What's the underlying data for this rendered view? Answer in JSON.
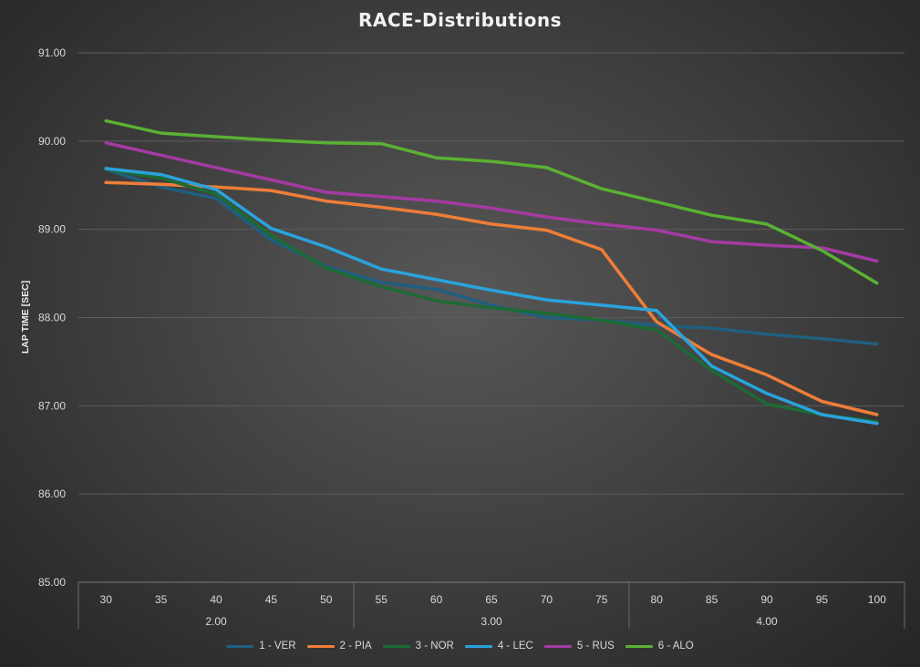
{
  "chart_data": {
    "type": "line",
    "title": "RACE-Distributions",
    "ylabel": "LAP TIME [SEC]",
    "xlabel": "",
    "ylim": [
      85,
      91
    ],
    "y_ticks": [
      "85.00",
      "86.00",
      "87.00",
      "88.00",
      "89.00",
      "90.00",
      "91.00"
    ],
    "categories": [
      "30",
      "35",
      "40",
      "45",
      "50",
      "55",
      "60",
      "65",
      "70",
      "75",
      "80",
      "85",
      "90",
      "95",
      "100"
    ],
    "groups": [
      {
        "label": "2.00",
        "span": 5
      },
      {
        "label": "3.00",
        "span": 5
      },
      {
        "label": "4.00",
        "span": 5
      }
    ],
    "grid": true,
    "legend_position": "bottom",
    "series": [
      {
        "name": "1 - VER",
        "color": "#1f5f7f",
        "values": [
          89.68,
          89.48,
          89.35,
          88.88,
          88.58,
          88.4,
          88.32,
          88.14,
          88.0,
          87.97,
          87.91,
          87.88,
          87.81,
          87.76,
          87.7
        ]
      },
      {
        "name": "2 - PIA",
        "color": "#ef7d38",
        "values": [
          89.53,
          89.51,
          89.48,
          89.44,
          89.32,
          89.25,
          89.17,
          89.06,
          88.99,
          88.77,
          87.95,
          87.58,
          87.35,
          87.05,
          86.9
        ]
      },
      {
        "name": "3 - NOR",
        "color": "#1c6b34",
        "values": [
          89.68,
          89.58,
          89.4,
          88.93,
          88.56,
          88.35,
          88.19,
          88.11,
          88.05,
          87.97,
          87.86,
          87.4,
          87.02,
          86.9,
          86.82
        ]
      },
      {
        "name": "4 - LEC",
        "color": "#2aa3dc",
        "values": [
          89.69,
          89.62,
          89.45,
          89.01,
          88.8,
          88.55,
          88.43,
          88.31,
          88.2,
          88.14,
          88.08,
          87.45,
          87.14,
          86.9,
          86.8
        ]
      },
      {
        "name": "5 - RUS",
        "color": "#a53aa2",
        "values": [
          89.98,
          89.84,
          89.7,
          89.56,
          89.42,
          89.37,
          89.32,
          89.24,
          89.14,
          89.06,
          88.99,
          88.86,
          88.82,
          88.79,
          88.64
        ]
      },
      {
        "name": "6 - ALO",
        "color": "#5ab133",
        "values": [
          90.23,
          90.09,
          90.05,
          90.01,
          89.98,
          89.97,
          89.81,
          89.77,
          89.7,
          89.46,
          89.31,
          89.16,
          89.06,
          88.76,
          88.39
        ]
      }
    ]
  }
}
